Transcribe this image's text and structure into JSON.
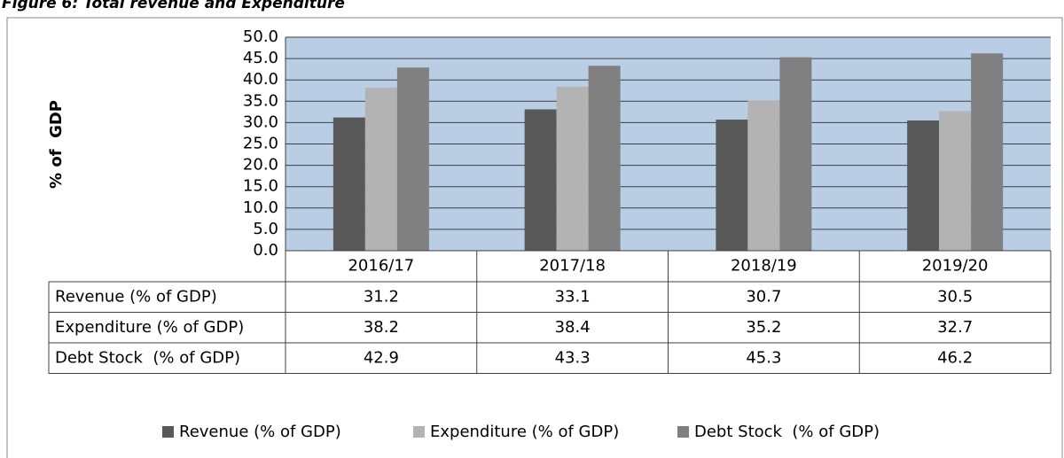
{
  "chart_data": {
    "type": "bar",
    "title": "Figure 6: Total revenue and Expenditure",
    "y_label": "% of  GDP",
    "categories": [
      "2016/17",
      "2017/18",
      "2018/19",
      "2019/20"
    ],
    "series": [
      {
        "name": "Revenue (% of GDP)",
        "color": "#595959",
        "values": [
          31.2,
          33.1,
          30.7,
          30.5
        ]
      },
      {
        "name": "Expenditure (% of GDP)",
        "color": "#b3b3b3",
        "values": [
          38.2,
          38.4,
          35.2,
          32.7
        ]
      },
      {
        "name": "Debt Stock  (% of GDP)",
        "color": "#808080",
        "values": [
          42.9,
          43.3,
          45.3,
          46.2
        ]
      }
    ],
    "ylim": [
      0,
      50
    ],
    "yticks": [
      {
        "value": 0,
        "label": "0.0"
      },
      {
        "value": 5,
        "label": "5.0"
      },
      {
        "value": 10,
        "label": "10.0"
      },
      {
        "value": 15,
        "label": "15.0"
      },
      {
        "value": 20,
        "label": "20.0"
      },
      {
        "value": 25,
        "label": "25.0"
      },
      {
        "value": 30,
        "label": "30.0"
      },
      {
        "value": 35,
        "label": "35.0"
      },
      {
        "value": 40,
        "label": "40.0"
      },
      {
        "value": 45,
        "label": "45.0"
      },
      {
        "value": 50,
        "label": "50.0"
      }
    ],
    "grid": true,
    "plot_background": "#b9cde5",
    "legend": "bottom",
    "data_table": true
  }
}
